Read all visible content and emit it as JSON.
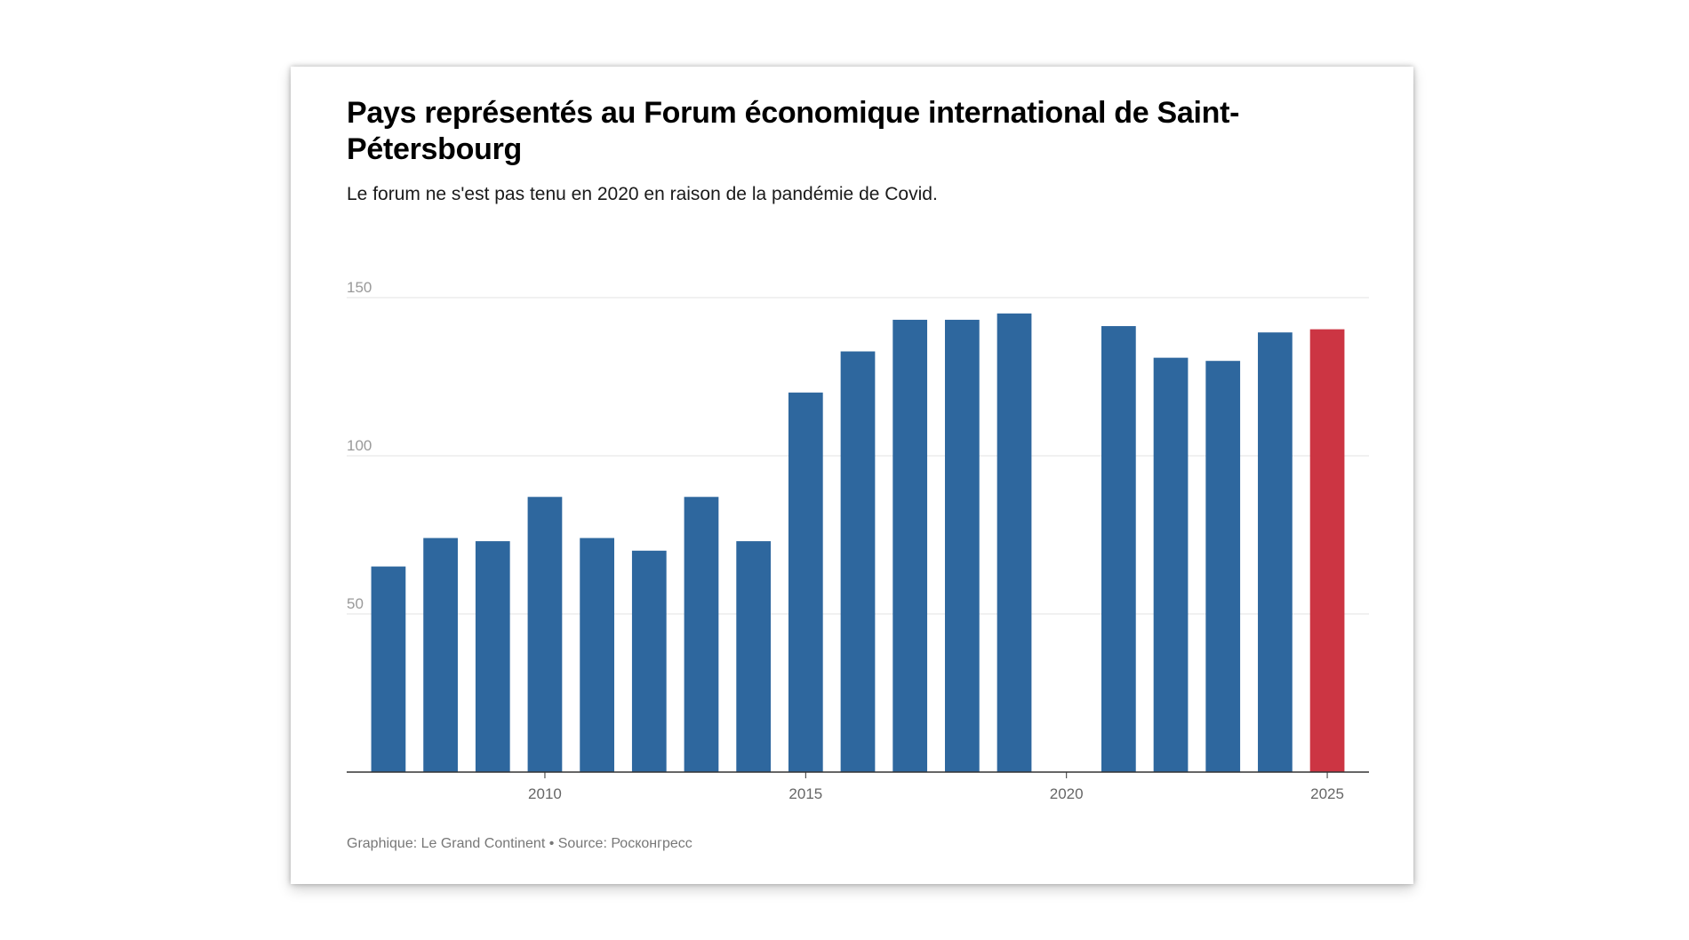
{
  "title": "Pays représentés au Forum économique international de Saint-Pétersbourg",
  "subtitle": "Le forum ne s'est pas tenu en 2020 en raison de la pandémie de Covid.",
  "footer": "Graphique: Le Grand Continent • Source: Росконгресс",
  "colors": {
    "bar": "#2e679e",
    "highlight": "#cc3543",
    "grid": "#e3e3e3",
    "axis": "#333333"
  },
  "chart_data": {
    "type": "bar",
    "title": "Pays représentés au Forum économique international de Saint-Pétersbourg",
    "subtitle": "Le forum ne s'est pas tenu en 2020 en raison de la pandémie de Covid.",
    "xlabel": "",
    "ylabel": "",
    "x": [
      2007,
      2008,
      2009,
      2010,
      2011,
      2012,
      2013,
      2014,
      2015,
      2016,
      2017,
      2018,
      2019,
      2020,
      2021,
      2022,
      2023,
      2024,
      2025
    ],
    "values": [
      65,
      74,
      73,
      87,
      74,
      70,
      87,
      73,
      120,
      133,
      143,
      143,
      145,
      null,
      141,
      131,
      130,
      139,
      140
    ],
    "highlight": [
      2025
    ],
    "xlim": [
      2006.2,
      2025.8
    ],
    "ylim": [
      0,
      150
    ],
    "y_ticks": [
      50,
      100,
      150
    ],
    "x_ticks": [
      2010,
      2015,
      2020,
      2025
    ],
    "grid": true,
    "legend": "none"
  }
}
